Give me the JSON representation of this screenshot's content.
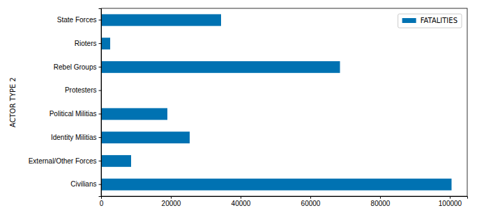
{
  "chart_data": {
    "type": "bar",
    "orientation": "horizontal",
    "y_label": "ACTOR TYPE 2",
    "categories": [
      "Civilians",
      "External/Other Forces",
      "Identity Militias",
      "Political Militias",
      "Protesters",
      "Rebel Groups",
      "Rioters",
      "State Forces"
    ],
    "series": [
      {
        "name": "FATALITIES",
        "color": "#0072b2",
        "values": [
          100500,
          8600,
          25400,
          19000,
          0,
          68500,
          2600,
          34400
        ]
      }
    ],
    "xlim": [
      0,
      105000
    ],
    "xticks": [
      0,
      20000,
      40000,
      60000,
      80000,
      100000
    ],
    "legend": "upper right",
    "grid": false
  }
}
